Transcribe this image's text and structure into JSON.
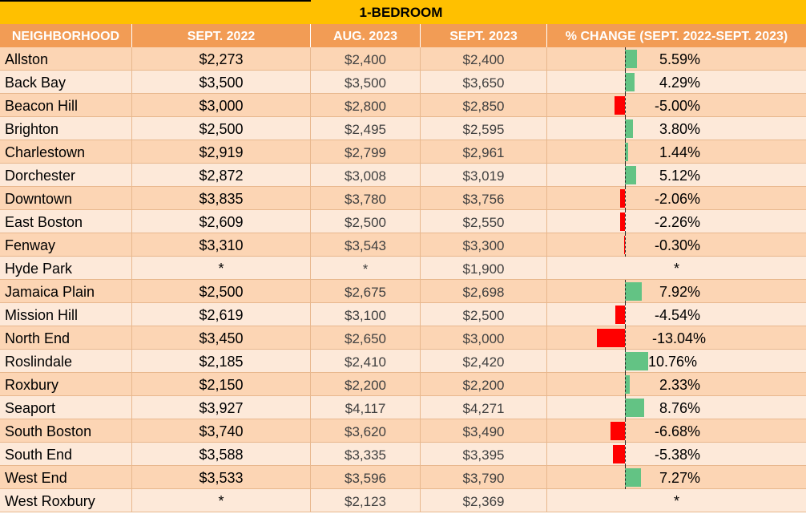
{
  "table": {
    "title": "1-BEDROOM",
    "headers": [
      "NEIGHBORHOOD",
      "SEPT. 2022",
      "AUG. 2023",
      "SEPT. 2023",
      "% CHANGE (SEPT. 2022-SEPT. 2023)"
    ],
    "rows": [
      {
        "name": "Allston",
        "sept2022": "$2,273",
        "aug2023": "$2,400",
        "sept2023": "$2,400",
        "pct": "5.59%"
      },
      {
        "name": "Back Bay",
        "sept2022": "$3,500",
        "aug2023": "$3,500",
        "sept2023": "$3,650",
        "pct": "4.29%"
      },
      {
        "name": "Beacon Hill",
        "sept2022": "$3,000",
        "aug2023": "$2,800",
        "sept2023": "$2,850",
        "pct": "-5.00%"
      },
      {
        "name": "Brighton",
        "sept2022": "$2,500",
        "aug2023": "$2,495",
        "sept2023": "$2,595",
        "pct": "3.80%"
      },
      {
        "name": "Charlestown",
        "sept2022": "$2,919",
        "aug2023": "$2,799",
        "sept2023": "$2,961",
        "pct": "1.44%"
      },
      {
        "name": "Dorchester",
        "sept2022": "$2,872",
        "aug2023": "$3,008",
        "sept2023": "$3,019",
        "pct": "5.12%"
      },
      {
        "name": "Downtown",
        "sept2022": "$3,835",
        "aug2023": "$3,780",
        "sept2023": "$3,756",
        "pct": "-2.06%"
      },
      {
        "name": "East Boston",
        "sept2022": "$2,609",
        "aug2023": "$2,500",
        "sept2023": "$2,550",
        "pct": "-2.26%"
      },
      {
        "name": "Fenway",
        "sept2022": "$3,310",
        "aug2023": "$3,543",
        "sept2023": "$3,300",
        "pct": "-0.30%"
      },
      {
        "name": "Hyde Park",
        "sept2022": "*",
        "aug2023": "*",
        "sept2023": "$1,900",
        "pct": "*"
      },
      {
        "name": "Jamaica Plain",
        "sept2022": "$2,500",
        "aug2023": "$2,675",
        "sept2023": "$2,698",
        "pct": "7.92%"
      },
      {
        "name": "Mission Hill",
        "sept2022": "$2,619",
        "aug2023": "$3,100",
        "sept2023": "$2,500",
        "pct": "-4.54%"
      },
      {
        "name": "North End",
        "sept2022": "$3,450",
        "aug2023": "$2,650",
        "sept2023": "$3,000",
        "pct": "-13.04%"
      },
      {
        "name": "Roslindale",
        "sept2022": "$2,185",
        "aug2023": "$2,410",
        "sept2023": "$2,420",
        "pct": "10.76%"
      },
      {
        "name": "Roxbury",
        "sept2022": "$2,150",
        "aug2023": "$2,200",
        "sept2023": "$2,200",
        "pct": "2.33%"
      },
      {
        "name": "Seaport",
        "sept2022": "$3,927",
        "aug2023": "$4,117",
        "sept2023": "$4,271",
        "pct": "8.76%"
      },
      {
        "name": "South Boston",
        "sept2022": "$3,740",
        "aug2023": "$3,620",
        "sept2023": "$3,490",
        "pct": "-6.68%"
      },
      {
        "name": "South End",
        "sept2022": "$3,588",
        "aug2023": "$3,335",
        "sept2023": "$3,395",
        "pct": "-5.38%"
      },
      {
        "name": "West End",
        "sept2022": "$3,533",
        "aug2023": "$3,596",
        "sept2023": "$3,790",
        "pct": "7.27%"
      },
      {
        "name": "West Roxbury",
        "sept2022": "*",
        "aug2023": "$2,123",
        "sept2023": "$2,369",
        "pct": "*"
      }
    ]
  },
  "chart_data": {
    "type": "table",
    "title": "1-BEDROOM",
    "columns": [
      "NEIGHBORHOOD",
      "SEPT. 2022",
      "AUG. 2023",
      "SEPT. 2023",
      "% CHANGE (SEPT. 2022-SEPT. 2023)"
    ],
    "categories": [
      "Allston",
      "Back Bay",
      "Beacon Hill",
      "Brighton",
      "Charlestown",
      "Dorchester",
      "Downtown",
      "East Boston",
      "Fenway",
      "Hyde Park",
      "Jamaica Plain",
      "Mission Hill",
      "North End",
      "Roslindale",
      "Roxbury",
      "Seaport",
      "South Boston",
      "South End",
      "West End",
      "West Roxbury"
    ],
    "series": [
      {
        "name": "SEPT. 2022",
        "values": [
          2273,
          3500,
          3000,
          2500,
          2919,
          2872,
          3835,
          2609,
          3310,
          null,
          2500,
          2619,
          3450,
          2185,
          2150,
          3927,
          3740,
          3588,
          3533,
          null
        ]
      },
      {
        "name": "AUG. 2023",
        "values": [
          2400,
          3500,
          2800,
          2495,
          2799,
          3008,
          3780,
          2500,
          3543,
          null,
          2675,
          3100,
          2650,
          2410,
          2200,
          4117,
          3620,
          3335,
          3596,
          2123
        ]
      },
      {
        "name": "SEPT. 2023",
        "values": [
          2400,
          3650,
          2850,
          2595,
          2961,
          3019,
          3756,
          2550,
          3300,
          1900,
          2698,
          2500,
          3000,
          2420,
          2200,
          4271,
          3490,
          3395,
          3790,
          2369
        ]
      },
      {
        "name": "% CHANGE (SEPT. 2022-SEPT. 2023)",
        "values": [
          5.59,
          4.29,
          -5.0,
          3.8,
          1.44,
          5.12,
          -2.06,
          -2.26,
          -0.3,
          null,
          7.92,
          -4.54,
          -13.04,
          10.76,
          2.33,
          8.76,
          -6.68,
          -5.38,
          7.27,
          null
        ]
      }
    ],
    "colors": {
      "title_band": "#ffc000",
      "header": "#f29c55",
      "row_odd": "#fcd5b4",
      "row_even": "#fde9d9",
      "bar_positive": "#63c384",
      "bar_negative": "#ff0000"
    }
  }
}
